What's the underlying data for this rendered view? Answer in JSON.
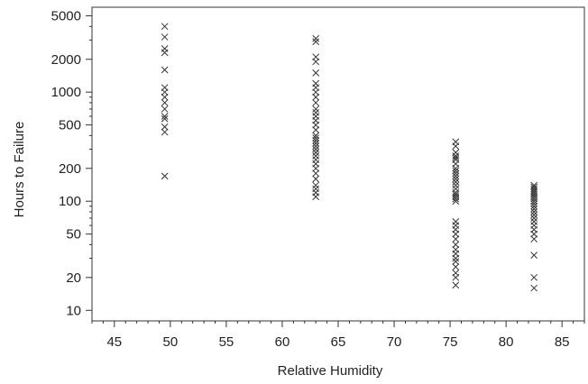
{
  "chart_data": {
    "type": "scatter",
    "title": "",
    "xlabel": "Relative Humidity",
    "ylabel": "Hours to Failure",
    "xlim": [
      43,
      87
    ],
    "ylim": [
      8,
      6000
    ],
    "yscale": "log",
    "grid": false,
    "marker": "x",
    "marker_color": "#333333",
    "xticks": [
      45,
      50,
      55,
      60,
      65,
      70,
      75,
      80,
      85
    ],
    "xtick_labels": [
      "45",
      "50",
      "55",
      "60",
      "65",
      "70",
      "75",
      "80",
      "85"
    ],
    "yticks": [
      10,
      20,
      50,
      100,
      200,
      500,
      1000,
      2000,
      5000
    ],
    "ytick_labels": [
      "10",
      "20",
      "50",
      "100",
      "200",
      "500",
      "1000",
      "2000",
      "5000"
    ],
    "series": [
      {
        "x": 49.5,
        "y": [
          170,
          430,
          480,
          570,
          600,
          700,
          800,
          900,
          1000,
          1100,
          1600,
          2300,
          2500,
          3200,
          4000
        ]
      },
      {
        "x": 63,
        "y": [
          110,
          120,
          130,
          140,
          160,
          180,
          200,
          220,
          240,
          260,
          280,
          300,
          320,
          340,
          360,
          380,
          400,
          450,
          500,
          550,
          600,
          650,
          700,
          800,
          900,
          1000,
          1100,
          1200,
          1500,
          1900,
          2100,
          2900,
          3100
        ]
      },
      {
        "x": 75.5,
        "y": [
          17,
          20,
          22,
          25,
          28,
          30,
          33,
          36,
          40,
          45,
          50,
          55,
          60,
          65,
          100,
          105,
          110,
          115,
          120,
          130,
          140,
          150,
          160,
          170,
          180,
          190,
          200,
          220,
          240,
          250,
          260,
          280,
          320,
          350
        ]
      },
      {
        "x": 82.5,
        "y": [
          16,
          20,
          32,
          45,
          50,
          55,
          60,
          65,
          70,
          75,
          80,
          85,
          90,
          95,
          100,
          105,
          110,
          115,
          120,
          125,
          130,
          135,
          140
        ]
      }
    ]
  }
}
